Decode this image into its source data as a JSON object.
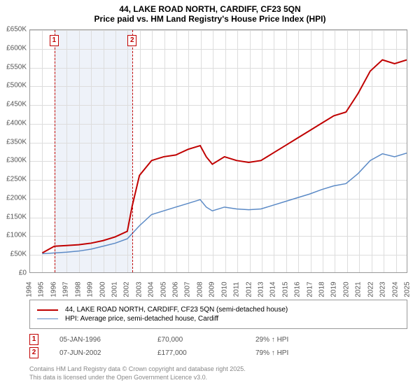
{
  "title": "44, LAKE ROAD NORTH, CARDIFF, CF23 5QN",
  "subtitle": "Price paid vs. HM Land Registry's House Price Index (HPI)",
  "chart": {
    "type": "line",
    "background_color": "#ffffff",
    "grid_color": "#dddddd",
    "border_color": "#999999",
    "shaded_region_color": "#eef2f9",
    "xlim": [
      1994,
      2025
    ],
    "ylim": [
      0,
      650000
    ],
    "ytick_step": 50000,
    "y_ticks": [
      "£0",
      "£50K",
      "£100K",
      "£150K",
      "£200K",
      "£250K",
      "£300K",
      "£350K",
      "£400K",
      "£450K",
      "£500K",
      "£550K",
      "£600K",
      "£650K"
    ],
    "x_ticks": [
      "1994",
      "1995",
      "1996",
      "1997",
      "1998",
      "1999",
      "2000",
      "2001",
      "2002",
      "2003",
      "2004",
      "2005",
      "2006",
      "2007",
      "2008",
      "2009",
      "2010",
      "2011",
      "2012",
      "2013",
      "2014",
      "2015",
      "2016",
      "2017",
      "2018",
      "2019",
      "2020",
      "2021",
      "2022",
      "2023",
      "2024",
      "2025"
    ],
    "shaded_region_x": [
      1996,
      2002.4
    ],
    "markers": [
      {
        "label": "1",
        "x": 1996
      },
      {
        "label": "2",
        "x": 2002.4
      }
    ],
    "series": [
      {
        "name": "price_paid",
        "color": "#c00000",
        "line_width": 2,
        "points": [
          [
            1995,
            52000
          ],
          [
            1996,
            70000
          ],
          [
            1997,
            72000
          ],
          [
            1998,
            74000
          ],
          [
            1999,
            78000
          ],
          [
            2000,
            85000
          ],
          [
            2001,
            95000
          ],
          [
            2002,
            110000
          ],
          [
            2002.4,
            177000
          ],
          [
            2003,
            260000
          ],
          [
            2004,
            300000
          ],
          [
            2005,
            310000
          ],
          [
            2006,
            315000
          ],
          [
            2007,
            330000
          ],
          [
            2008,
            340000
          ],
          [
            2008.5,
            310000
          ],
          [
            2009,
            290000
          ],
          [
            2010,
            310000
          ],
          [
            2011,
            300000
          ],
          [
            2012,
            295000
          ],
          [
            2013,
            300000
          ],
          [
            2014,
            320000
          ],
          [
            2015,
            340000
          ],
          [
            2016,
            360000
          ],
          [
            2017,
            380000
          ],
          [
            2018,
            400000
          ],
          [
            2019,
            420000
          ],
          [
            2020,
            430000
          ],
          [
            2021,
            480000
          ],
          [
            2022,
            540000
          ],
          [
            2023,
            570000
          ],
          [
            2024,
            560000
          ],
          [
            2025,
            570000
          ]
        ]
      },
      {
        "name": "hpi",
        "color": "#5b8ac6",
        "line_width": 1.5,
        "points": [
          [
            1995,
            50000
          ],
          [
            1996,
            52000
          ],
          [
            1997,
            54000
          ],
          [
            1998,
            57000
          ],
          [
            1999,
            62000
          ],
          [
            2000,
            70000
          ],
          [
            2001,
            78000
          ],
          [
            2002,
            90000
          ],
          [
            2003,
            125000
          ],
          [
            2004,
            155000
          ],
          [
            2005,
            165000
          ],
          [
            2006,
            175000
          ],
          [
            2007,
            185000
          ],
          [
            2008,
            195000
          ],
          [
            2008.5,
            175000
          ],
          [
            2009,
            165000
          ],
          [
            2010,
            175000
          ],
          [
            2011,
            170000
          ],
          [
            2012,
            168000
          ],
          [
            2013,
            170000
          ],
          [
            2014,
            180000
          ],
          [
            2015,
            190000
          ],
          [
            2016,
            200000
          ],
          [
            2017,
            210000
          ],
          [
            2018,
            222000
          ],
          [
            2019,
            232000
          ],
          [
            2020,
            238000
          ],
          [
            2021,
            265000
          ],
          [
            2022,
            300000
          ],
          [
            2023,
            318000
          ],
          [
            2024,
            310000
          ],
          [
            2025,
            320000
          ]
        ]
      }
    ]
  },
  "legend": {
    "items": [
      {
        "color": "#c00000",
        "width": 2,
        "label": "44, LAKE ROAD NORTH, CARDIFF, CF23 5QN (semi-detached house)"
      },
      {
        "color": "#5b8ac6",
        "width": 1.5,
        "label": "HPI: Average price, semi-detached house, Cardiff"
      }
    ]
  },
  "data_table": {
    "rows": [
      {
        "marker": "1",
        "date": "05-JAN-1996",
        "price": "£70,000",
        "hpi_diff": "29% ↑ HPI"
      },
      {
        "marker": "2",
        "date": "07-JUN-2002",
        "price": "£177,000",
        "hpi_diff": "79% ↑ HPI"
      }
    ]
  },
  "credit": {
    "line1": "Contains HM Land Registry data © Crown copyright and database right 2025.",
    "line2": "This data is licensed under the Open Government Licence v3.0."
  },
  "fonts": {
    "title_size": 12,
    "tick_size": 10,
    "legend_size": 10,
    "credit_size": 9
  },
  "colors": {
    "text_primary": "#000000",
    "text_secondary": "#555555",
    "text_credit": "#888888",
    "marker_border": "#c00000"
  }
}
